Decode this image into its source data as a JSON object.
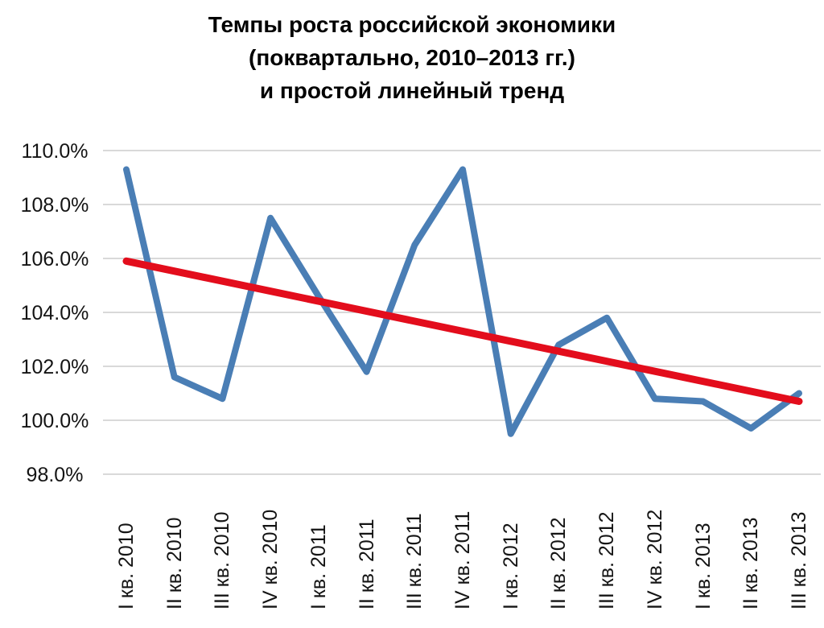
{
  "chart_data": {
    "type": "line",
    "title": "Темпы роста российской экономики (поквартально, 2010–2013 гг.) и простой линейный тренд",
    "title_lines": [
      "Темпы роста российской экономики",
      "(поквартально, 2010–2013 гг.)",
      "и простой линейный тренд"
    ],
    "categories": [
      "I кв. 2010",
      "II кв. 2010",
      "III кв. 2010",
      "IV кв. 2010",
      "I кв. 2011",
      "II кв. 2011",
      "III кв. 2011",
      "IV кв. 2011",
      "I кв. 2012",
      "II кв. 2012",
      "III кв. 2012",
      "IV кв. 2012",
      "I кв. 2013",
      "II кв. 2013",
      "III кв. 2013"
    ],
    "series": [
      {
        "name": "Темпы роста",
        "kind": "data-line",
        "color": "#4a7eb5",
        "values": [
          109.3,
          101.6,
          100.8,
          107.5,
          104.6,
          101.8,
          106.5,
          109.3,
          99.5,
          102.8,
          103.8,
          100.8,
          100.7,
          99.7,
          101.0
        ]
      },
      {
        "name": "простой линейный тренд",
        "kind": "trend-line",
        "color": "#e30d1c",
        "trend_start": 105.9,
        "trend_end": 100.7
      }
    ],
    "yticks": [
      "110.0%",
      "108.0%",
      "106.0%",
      "104.0%",
      "102.0%",
      "100.0%",
      "98.0%"
    ],
    "ylim": [
      98,
      110
    ],
    "ytick_step": 2,
    "xlabel": "",
    "ylabel": "",
    "grid": true,
    "grid_color": "#d9d9d9",
    "text_color": "#141414",
    "legend_position": "none"
  }
}
